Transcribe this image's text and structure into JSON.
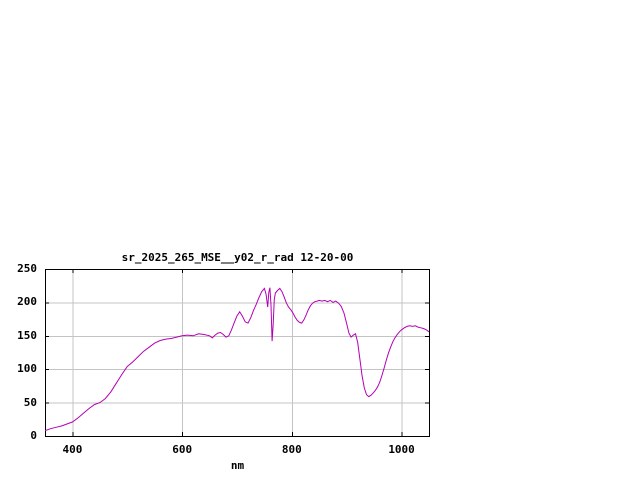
{
  "chart_data": {
    "type": "line",
    "title": "sr_2025_265_MSE__y02_r_rad 12-20-00",
    "xlabel": "nm",
    "ylabel": "",
    "xlim": [
      350,
      1050
    ],
    "ylim": [
      0,
      250
    ],
    "xticks": [
      400,
      600,
      800,
      1000
    ],
    "yticks": [
      0,
      50,
      100,
      150,
      200,
      250
    ],
    "grid": true,
    "legend": "none",
    "line_color": "#b400b4",
    "series": [
      {
        "x": [
          350,
          360,
          370,
          380,
          390,
          400,
          410,
          420,
          430,
          440,
          450,
          460,
          470,
          480,
          490,
          500,
          510,
          520,
          530,
          540,
          550,
          560,
          570,
          580,
          590,
          600,
          610,
          620,
          630,
          640,
          650,
          655,
          660,
          665,
          670,
          675,
          680,
          685,
          690,
          695,
          700,
          705,
          710,
          715,
          720,
          725,
          730,
          735,
          740,
          745,
          750,
          753,
          756,
          758,
          760,
          762,
          764,
          766,
          768,
          770,
          774,
          778,
          782,
          786,
          790,
          794,
          798,
          802,
          806,
          810,
          814,
          818,
          822,
          826,
          830,
          834,
          838,
          842,
          846,
          850,
          855,
          860,
          865,
          870,
          875,
          880,
          885,
          890,
          895,
          900,
          904,
          908,
          912,
          916,
          920,
          924,
          928,
          932,
          936,
          940,
          944,
          948,
          952,
          956,
          960,
          964,
          968,
          972,
          976,
          980,
          984,
          988,
          992,
          996,
          1000,
          1005,
          1010,
          1015,
          1020,
          1025,
          1030,
          1035,
          1040,
          1045,
          1050
        ],
        "y": [
          8,
          11,
          13,
          15,
          18,
          21,
          27,
          34,
          41,
          47,
          50,
          56,
          66,
          79,
          92,
          104,
          111,
          119,
          127,
          133,
          139,
          143,
          145,
          146,
          148,
          150,
          151,
          150,
          153,
          152,
          150,
          147,
          151,
          154,
          155,
          152,
          148,
          150,
          159,
          170,
          180,
          186,
          179,
          171,
          169,
          177,
          188,
          197,
          207,
          216,
          221,
          212,
          193,
          215,
          222,
          196,
          142,
          168,
          205,
          214,
          218,
          221,
          216,
          208,
          199,
          193,
          189,
          184,
          178,
          173,
          170,
          169,
          174,
          181,
          189,
          195,
          199,
          201,
          202,
          203,
          202,
          203,
          201,
          203,
          200,
          202,
          199,
          194,
          184,
          168,
          154,
          148,
          151,
          153,
          140,
          115,
          90,
          72,
          62,
          59,
          61,
          64,
          68,
          73,
          80,
          90,
          101,
          113,
          124,
          133,
          141,
          147,
          152,
          156,
          159,
          162,
          164,
          165,
          164,
          165,
          163,
          162,
          161,
          159,
          156
        ]
      }
    ]
  },
  "colors": {
    "grid": "#c4c4c4",
    "axis": "#000000",
    "background": "#ffffff"
  }
}
